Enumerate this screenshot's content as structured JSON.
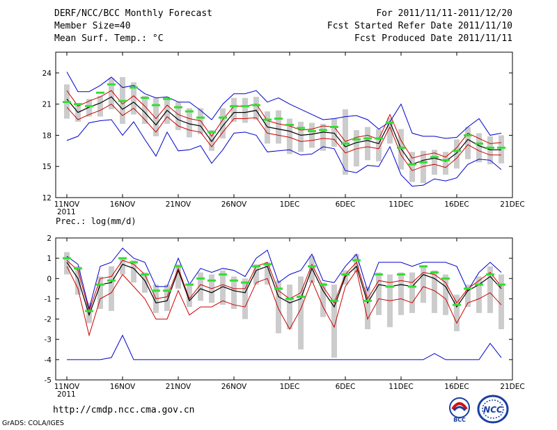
{
  "header": {
    "title": "DERF/NCC/BCC Monthly Forecast",
    "member_size": "Member Size=40",
    "variable": "Mean Surf. Temp.: °C",
    "period": "For 2011/11/11-2011/12/20",
    "start_date": "Fcst Started Refer Date 2011/11/10",
    "produced_date": "Fcst Produced Date 2011/11/11"
  },
  "footer": {
    "url": "http://cmdp.ncc.cma.gov.cn",
    "credit": "GrADS: COLA/IGES",
    "logo_bcc": "BCC",
    "logo_ncc": "NCC"
  },
  "colors": {
    "ens_max_min": "#0000cc",
    "spread": "#cc0000",
    "mean": "#000000",
    "climatology": "#33dd33",
    "member_box": "#cccccc"
  },
  "chart_data": [
    {
      "type": "line",
      "title": "Mean Surf. Temp.: °C",
      "x_tick_labels": [
        "11NOV",
        "16NOV",
        "21NOV",
        "26NOV",
        "1DEC",
        "6DEC",
        "11DEC",
        "16DEC",
        "21DEC"
      ],
      "x_year_label": "2011",
      "x_days": [
        0,
        1,
        2,
        3,
        4,
        5,
        6,
        7,
        8,
        9,
        10,
        11,
        12,
        13,
        14,
        15,
        16,
        17,
        18,
        19,
        20,
        21,
        22,
        23,
        24,
        25,
        26,
        27,
        28,
        29,
        30,
        31,
        32,
        33,
        34,
        35,
        36,
        37,
        38,
        39
      ],
      "ylim": [
        12,
        26
      ],
      "yticks": [
        12,
        15,
        18,
        21,
        24
      ],
      "series": [
        {
          "name": "ens_max",
          "values": [
            24.1,
            22.2,
            22.2,
            22.8,
            23.6,
            22.6,
            22.8,
            22.0,
            21.6,
            21.7,
            21.2,
            21.2,
            20.4,
            19.5,
            21.0,
            22.0,
            22.0,
            22.3,
            21.2,
            21.6,
            21.0,
            20.5,
            20.0,
            19.5,
            19.6,
            19.8,
            19.9,
            19.5,
            18.6,
            19.3,
            21.0,
            18.2,
            17.9,
            17.9,
            17.7,
            17.8,
            18.8,
            19.6,
            18.0,
            18.2
          ]
        },
        {
          "name": "upper_spread",
          "values": [
            22.3,
            20.8,
            21.3,
            21.7,
            22.3,
            21.0,
            21.8,
            20.8,
            19.6,
            20.9,
            20.0,
            19.6,
            19.4,
            17.9,
            19.5,
            20.8,
            20.8,
            21.0,
            19.4,
            19.1,
            18.9,
            18.5,
            18.6,
            18.9,
            18.8,
            17.4,
            17.8,
            18.0,
            17.6,
            20.0,
            17.5,
            15.8,
            16.1,
            16.3,
            15.9,
            16.8,
            18.2,
            17.7,
            17.2,
            17.3
          ]
        },
        {
          "name": "mean",
          "values": [
            21.5,
            20.2,
            20.7,
            21.1,
            21.7,
            20.5,
            21.2,
            20.2,
            19.0,
            20.4,
            19.5,
            19.1,
            18.9,
            17.4,
            18.9,
            20.2,
            20.2,
            20.4,
            18.8,
            18.6,
            18.4,
            18.0,
            18.1,
            18.3,
            18.2,
            16.9,
            17.3,
            17.5,
            17.2,
            19.3,
            16.7,
            15.2,
            15.6,
            15.8,
            15.5,
            16.3,
            17.6,
            17.0,
            16.6,
            16.6
          ]
        },
        {
          "name": "lower_spread",
          "values": [
            20.7,
            19.5,
            20.0,
            20.4,
            21.0,
            19.9,
            20.6,
            19.5,
            18.3,
            19.8,
            18.9,
            18.5,
            18.3,
            16.9,
            18.3,
            19.6,
            19.6,
            19.7,
            18.2,
            18.0,
            17.8,
            17.4,
            17.5,
            17.7,
            17.6,
            16.3,
            16.7,
            16.9,
            16.7,
            18.8,
            16.1,
            14.6,
            15.0,
            15.2,
            14.9,
            15.8,
            17.1,
            16.5,
            16.1,
            16.1
          ]
        },
        {
          "name": "ens_min",
          "values": [
            17.5,
            17.9,
            19.2,
            19.4,
            19.5,
            18.0,
            19.3,
            17.6,
            16.0,
            18.3,
            16.5,
            16.6,
            17.0,
            15.3,
            16.6,
            18.2,
            18.3,
            18.0,
            16.4,
            16.5,
            16.6,
            16.1,
            16.2,
            16.9,
            16.7,
            14.6,
            14.4,
            15.1,
            15.0,
            16.9,
            14.2,
            13.1,
            13.2,
            13.8,
            13.6,
            13.9,
            15.2,
            15.7,
            15.6,
            14.7
          ]
        },
        {
          "name": "climatology",
          "values": [
            21.2,
            21.0,
            20.8,
            22.1,
            22.9,
            21.3,
            22.6,
            21.6,
            20.9,
            21.5,
            20.7,
            20.3,
            19.7,
            18.3,
            19.7,
            20.8,
            20.8,
            20.9,
            19.5,
            19.6,
            19.0,
            18.7,
            18.4,
            18.5,
            18.8,
            17.2,
            17.6,
            17.7,
            17.7,
            19.2,
            16.8,
            15.2,
            15.4,
            15.9,
            15.6,
            16.5,
            18.0,
            17.2,
            16.8,
            16.8
          ]
        },
        {
          "name": "box_high",
          "values": [
            22.9,
            21.0,
            21.5,
            21.8,
            23.5,
            23.6,
            23.1,
            21.8,
            21.6,
            21.7,
            21.2,
            20.6,
            20.6,
            18.5,
            20.6,
            21.6,
            21.6,
            21.7,
            20.3,
            20.4,
            19.6,
            19.3,
            19.2,
            19.1,
            19.6,
            20.5,
            18.5,
            18.8,
            18.6,
            19.7,
            18.6,
            16.4,
            16.5,
            16.6,
            16.4,
            17.6,
            18.8,
            18.2,
            17.9,
            18.0
          ]
        },
        {
          "name": "box_low",
          "values": [
            19.6,
            19.3,
            19.8,
            19.8,
            20.5,
            19.1,
            20.0,
            19.1,
            17.9,
            19.1,
            18.5,
            17.8,
            18.1,
            16.5,
            17.7,
            19.3,
            19.2,
            19.5,
            17.2,
            17.2,
            16.2,
            16.4,
            16.8,
            16.5,
            16.9,
            14.2,
            15.0,
            15.6,
            15.5,
            17.2,
            14.7,
            13.5,
            13.4,
            14.2,
            14.2,
            14.8,
            15.7,
            15.4,
            15.2,
            15.3
          ]
        }
      ]
    },
    {
      "type": "line",
      "title": "Prec.: log(mm/d)",
      "x_tick_labels": [
        "11NOV",
        "16NOV",
        "21NOV",
        "26NOV",
        "1DEC",
        "6DEC",
        "11DEC",
        "16DEC",
        "21DEC"
      ],
      "x_year_label": "2011",
      "x_days": [
        0,
        1,
        2,
        3,
        4,
        5,
        6,
        7,
        8,
        9,
        10,
        11,
        12,
        13,
        14,
        15,
        16,
        17,
        18,
        19,
        20,
        21,
        22,
        23,
        24,
        25,
        26,
        27,
        28,
        29,
        30,
        31,
        32,
        33,
        34,
        35,
        36,
        37,
        38,
        39
      ],
      "ylim": [
        -5,
        2
      ],
      "yticks": [
        -5,
        -4,
        -3,
        -2,
        -1,
        0,
        1,
        2
      ],
      "series": [
        {
          "name": "ens_max",
          "values": [
            1.1,
            0.7,
            -1.5,
            0.6,
            0.8,
            1.5,
            1.0,
            0.8,
            -0.4,
            -0.4,
            1.0,
            -0.3,
            0.5,
            0.3,
            0.5,
            0.4,
            0.1,
            1.0,
            1.4,
            -0.2,
            0.2,
            0.4,
            1.2,
            -0.1,
            -0.2,
            0.6,
            1.2,
            -0.6,
            0.8,
            0.8,
            0.8,
            0.6,
            0.8,
            0.8,
            0.8,
            0.6,
            -0.6,
            0.3,
            0.8,
            0.3
          ]
        },
        {
          "name": "upper_spread",
          "values": [
            0.9,
            0.4,
            -1.6,
            0.0,
            0.1,
            0.9,
            0.7,
            0.2,
            -1.0,
            -0.9,
            0.5,
            -1.0,
            -0.3,
            -0.5,
            -0.3,
            -0.5,
            -0.5,
            0.6,
            0.8,
            -0.6,
            -1.0,
            -0.7,
            0.7,
            -0.4,
            -1.2,
            0.2,
            0.8,
            -1.0,
            -0.1,
            -0.2,
            -0.1,
            -0.2,
            0.3,
            0.2,
            -0.2,
            -1.2,
            -0.5,
            -0.1,
            0.3,
            -0.4
          ]
        },
        {
          "name": "mean",
          "values": [
            0.8,
            0.0,
            -1.8,
            -0.3,
            -0.2,
            0.7,
            0.5,
            -0.1,
            -1.2,
            -1.1,
            0.4,
            -1.1,
            -0.5,
            -0.7,
            -0.4,
            -0.6,
            -0.7,
            0.4,
            0.6,
            -0.9,
            -1.2,
            -1.0,
            0.5,
            -0.6,
            -1.4,
            0.1,
            0.6,
            -1.2,
            -0.3,
            -0.4,
            -0.3,
            -0.4,
            0.2,
            0.0,
            -0.4,
            -1.4,
            -0.6,
            -0.3,
            0.1,
            -0.5
          ]
        },
        {
          "name": "lower_spread",
          "values": [
            0.6,
            -0.5,
            -2.8,
            -1.0,
            -0.7,
            0.2,
            -0.4,
            -1.0,
            -2.0,
            -2.0,
            -0.6,
            -1.8,
            -1.4,
            -1.4,
            -1.1,
            -1.3,
            -1.4,
            -0.2,
            0.0,
            -1.5,
            -2.5,
            -1.5,
            -0.1,
            -1.4,
            -2.4,
            -0.4,
            0.4,
            -2.0,
            -1.0,
            -1.1,
            -1.0,
            -1.2,
            -0.4,
            -0.6,
            -1.0,
            -2.2,
            -1.2,
            -1.0,
            -0.7,
            -1.3
          ]
        },
        {
          "name": "ens_min",
          "values": [
            -4.0,
            -4.0,
            -4.0,
            -4.0,
            -3.9,
            -2.8,
            -4.0,
            -4.0,
            -4.0,
            -4.0,
            -4.0,
            -4.0,
            -4.0,
            -4.0,
            -4.0,
            -4.0,
            -4.0,
            -4.0,
            -4.0,
            -4.0,
            -4.0,
            -4.0,
            -4.0,
            -4.0,
            -4.0,
            -4.0,
            -4.0,
            -4.0,
            -4.0,
            -4.0,
            -4.0,
            -4.0,
            -4.0,
            -3.7,
            -4.0,
            -4.0,
            -4.0,
            -4.0,
            -3.2,
            -3.9
          ]
        },
        {
          "name": "climatology",
          "values": [
            1.0,
            0.5,
            -1.6,
            -0.3,
            -0.1,
            1.0,
            0.8,
            0.2,
            -0.6,
            -0.6,
            0.6,
            -0.3,
            0.0,
            -0.1,
            0.2,
            -0.1,
            -0.2,
            0.6,
            0.7,
            -0.5,
            -1.0,
            -0.9,
            0.6,
            -0.3,
            -1.1,
            0.2,
            0.9,
            -1.1,
            0.2,
            -0.4,
            0.2,
            -0.4,
            0.6,
            0.3,
            0.0,
            -1.3,
            -0.5,
            -0.3,
            0.2,
            -0.3
          ]
        },
        {
          "name": "box_high",
          "values": [
            1.3,
            0.6,
            -1.2,
            0.1,
            0.6,
            1.0,
            0.9,
            0.3,
            -0.3,
            -0.3,
            0.7,
            -0.3,
            0.3,
            0.2,
            0.4,
            0.1,
            0.0,
            0.7,
            0.8,
            -0.1,
            -0.3,
            0.1,
            1.1,
            -0.2,
            -0.3,
            0.4,
            1.2,
            -0.4,
            0.3,
            0.2,
            0.3,
            0.3,
            0.6,
            0.4,
            0.2,
            -0.8,
            -0.3,
            0.1,
            0.6,
            0.2
          ]
        },
        {
          "name": "box_low",
          "values": [
            0.2,
            -0.8,
            -2.2,
            -1.5,
            -1.6,
            0.2,
            -0.2,
            -0.7,
            -1.7,
            -1.6,
            -0.5,
            -1.4,
            -1.1,
            -1.2,
            -1.3,
            -1.5,
            -2.0,
            -0.3,
            -0.3,
            -2.7,
            -2.5,
            -3.5,
            -0.2,
            -1.9,
            -3.9,
            -0.3,
            0.3,
            -2.5,
            -1.8,
            -2.4,
            -1.8,
            -1.7,
            -1.2,
            -1.7,
            -1.8,
            -2.6,
            -1.4,
            -1.7,
            -1.7,
            -2.5
          ]
        }
      ]
    }
  ]
}
